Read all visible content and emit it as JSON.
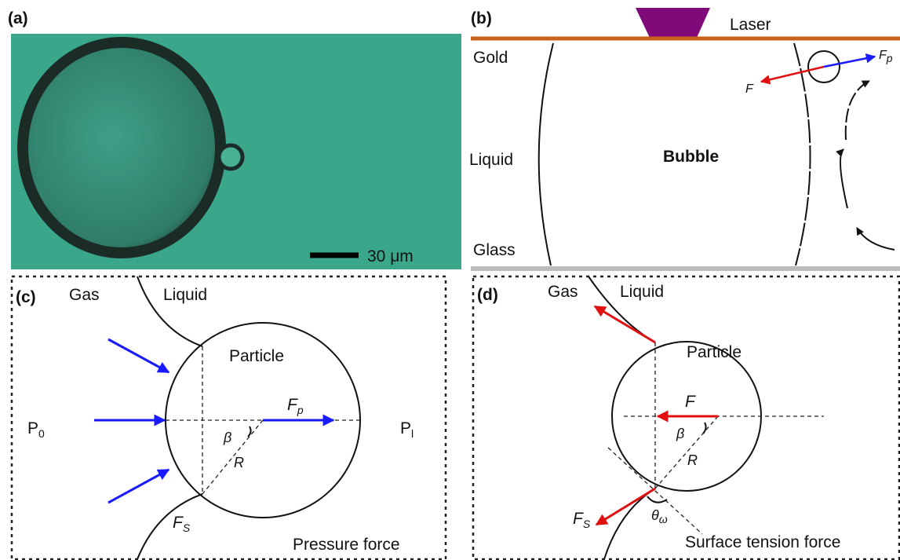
{
  "panel_a": {
    "label": "(a)",
    "scale_bar": "30 μm"
  },
  "panel_b": {
    "label": "(b)",
    "laser": "Laser",
    "gold": "Gold",
    "liquid": "Liquid",
    "bubble": "Bubble",
    "glass": "Glass",
    "force_p": {
      "base": "F",
      "sub": "p"
    },
    "force": "F"
  },
  "panel_c": {
    "label": "(c)",
    "gas": "Gas",
    "liquid": "Liquid",
    "particle": "Particle",
    "p0": {
      "base": "P",
      "sub": "0"
    },
    "pl": {
      "base": "P",
      "sub": "l"
    },
    "force_p": {
      "base": "F",
      "sub": "p"
    },
    "beta": "β",
    "radius": "R",
    "force_s": {
      "base": "F",
      "sub": "S"
    },
    "caption": "Pressure force"
  },
  "panel_d": {
    "label": "(d)",
    "gas": "Gas",
    "liquid": "Liquid",
    "particle": "Particle",
    "force": "F",
    "beta": "β",
    "radius": "R",
    "force_s": {
      "base": "F",
      "sub": "S"
    },
    "theta": {
      "base": "θ",
      "sub": "ω"
    },
    "caption": "Surface tension force"
  }
}
